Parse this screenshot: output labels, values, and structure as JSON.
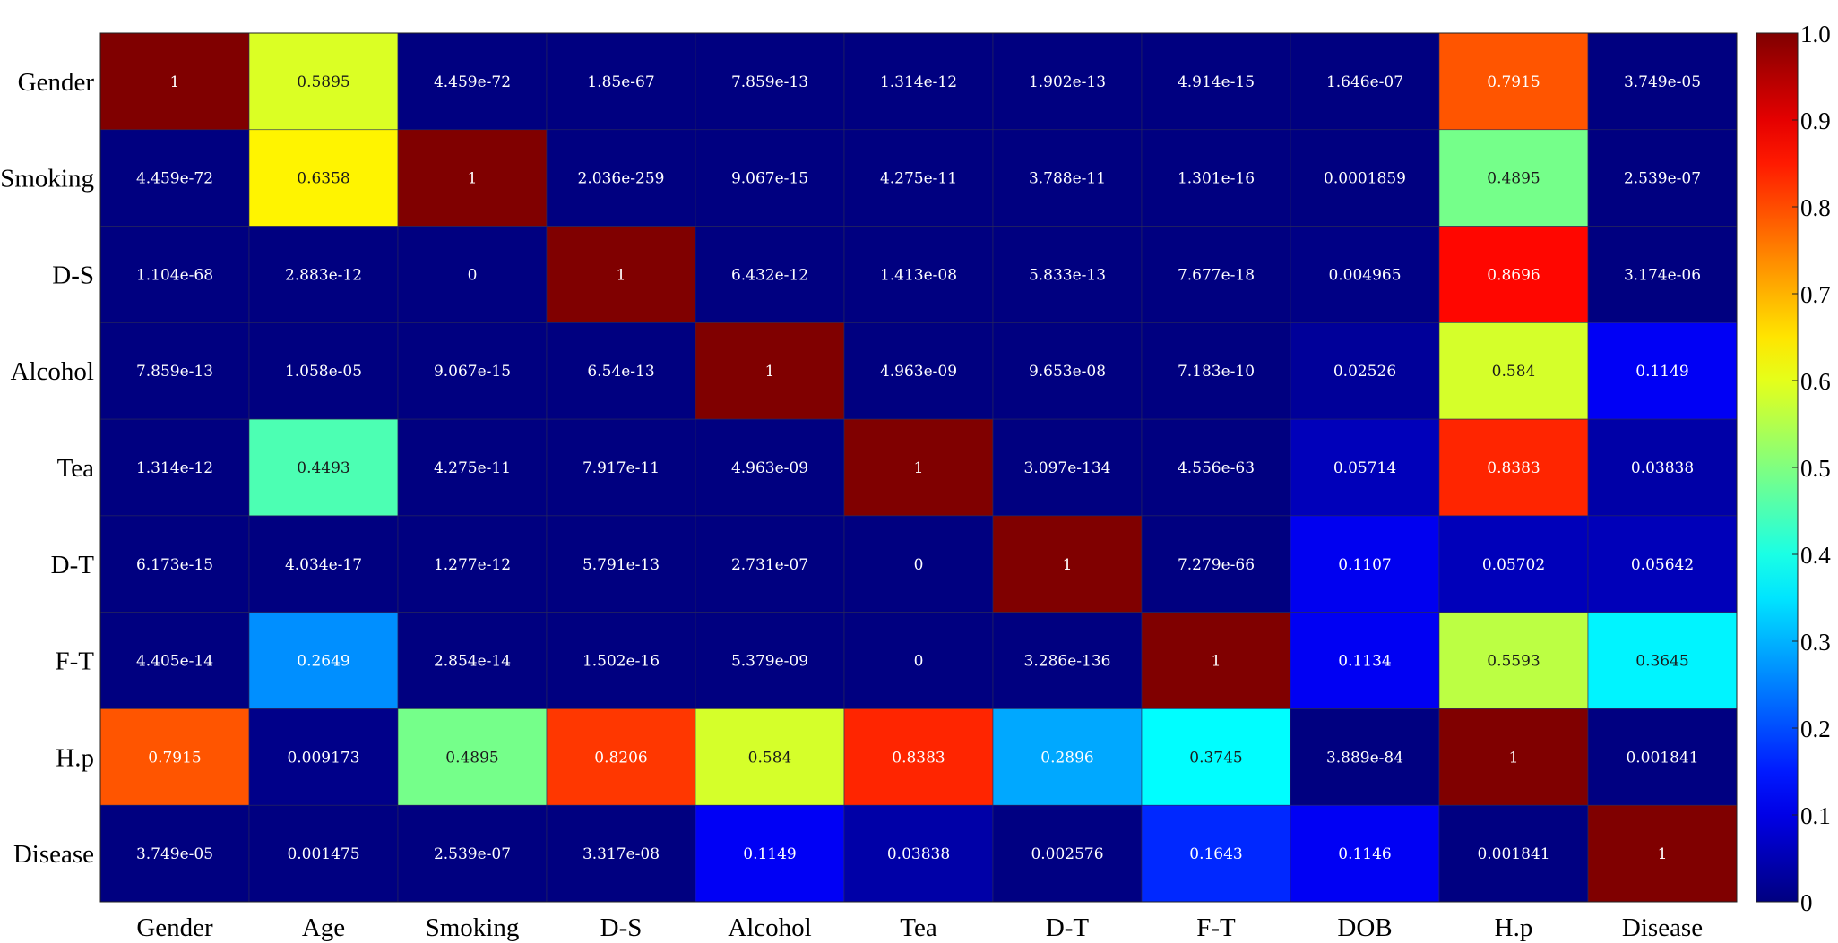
{
  "chart_data": {
    "type": "heatmap",
    "title": "",
    "xlabel": "",
    "ylabel": "",
    "colormap": "jet",
    "color_range": [
      0,
      1
    ],
    "x_categories": [
      "Gender",
      "Age",
      "Smoking",
      "D-S",
      "Alcohol",
      "Tea",
      "D-T",
      "F-T",
      "DOB",
      "H.p",
      "Disease"
    ],
    "y_categories": [
      "Gender",
      "Smoking",
      "D-S",
      "Alcohol",
      "Tea",
      "D-T",
      "F-T",
      "H.p",
      "Disease"
    ],
    "cell_labels": [
      [
        "1",
        "0.5895",
        "4.459e-72",
        "1.85e-67",
        "7.859e-13",
        "1.314e-12",
        "1.902e-13",
        "4.914e-15",
        "1.646e-07",
        "0.7915",
        "3.749e-05"
      ],
      [
        "4.459e-72",
        "0.6358",
        "1",
        "2.036e-259",
        "9.067e-15",
        "4.275e-11",
        "3.788e-11",
        "1.301e-16",
        "0.0001859",
        "0.4895",
        "2.539e-07"
      ],
      [
        "1.104e-68",
        "2.883e-12",
        "0",
        "1",
        "6.432e-12",
        "1.413e-08",
        "5.833e-13",
        "7.677e-18",
        "0.004965",
        "0.8696",
        "3.174e-06"
      ],
      [
        "7.859e-13",
        "1.058e-05",
        "9.067e-15",
        "6.54e-13",
        "1",
        "4.963e-09",
        "9.653e-08",
        "7.183e-10",
        "0.02526",
        "0.584",
        "0.1149"
      ],
      [
        "1.314e-12",
        "0.4493",
        "4.275e-11",
        "7.917e-11",
        "4.963e-09",
        "1",
        "3.097e-134",
        "4.556e-63",
        "0.05714",
        "0.8383",
        "0.03838"
      ],
      [
        "6.173e-15",
        "4.034e-17",
        "1.277e-12",
        "5.791e-13",
        "2.731e-07",
        "0",
        "1",
        "7.279e-66",
        "0.1107",
        "0.05702",
        "0.05642"
      ],
      [
        "4.405e-14",
        "0.2649",
        "2.854e-14",
        "1.502e-16",
        "5.379e-09",
        "0",
        "3.286e-136",
        "1",
        "0.1134",
        "0.5593",
        "0.3645"
      ],
      [
        "0.7915",
        "0.009173",
        "0.4895",
        "0.8206",
        "0.584",
        "0.8383",
        "0.2896",
        "0.3745",
        "3.889e-84",
        "1",
        "0.001841"
      ],
      [
        "3.749e-05",
        "0.001475",
        "2.539e-07",
        "3.317e-08",
        "0.1149",
        "0.03838",
        "0.002576",
        "0.1643",
        "0.1146",
        "0.001841",
        "1"
      ]
    ],
    "colorbar": {
      "ticks": [
        0,
        0.1,
        0.2,
        0.3,
        0.4,
        0.5,
        0.6,
        0.7,
        0.8,
        0.9,
        1.0
      ],
      "tick_labels": [
        "0",
        "0.1",
        "0.2",
        "0.3",
        "0.4",
        "0.5",
        "0.6",
        "0.7",
        "0.8",
        "0.9",
        "1.0"
      ],
      "position": "right"
    }
  }
}
